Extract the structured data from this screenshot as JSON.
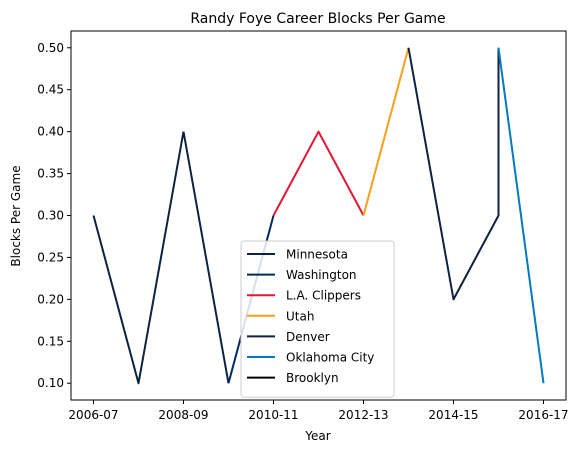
{
  "chart_data": {
    "type": "line",
    "title": "Randy Foye Career Blocks Per Game",
    "xlabel": "Year",
    "ylabel": "Blocks Per Game",
    "x_tick_labels": [
      "2006-07",
      "2008-09",
      "2010-11",
      "2012-13",
      "2014-15",
      "2016-17"
    ],
    "x": [
      "2006-07",
      "2007-08",
      "2008-09",
      "2009-10",
      "2010-11",
      "2011-12",
      "2012-13",
      "2013-14",
      "2014-15",
      "2015-16",
      "2016-17"
    ],
    "ylim": [
      0.08,
      0.52
    ],
    "y_ticks": [
      0.1,
      0.15,
      0.2,
      0.25,
      0.3,
      0.35,
      0.4,
      0.45,
      0.5
    ],
    "grid": false,
    "legend_position": "lower center",
    "series": [
      {
        "name": "Minnesota",
        "color": "#0C2340",
        "points": [
          [
            "2006-07",
            0.3
          ],
          [
            "2007-08",
            0.1
          ],
          [
            "2008-09",
            0.4
          ]
        ]
      },
      {
        "name": "Washington",
        "color": "#002B5C",
        "points": [
          [
            "2009-10",
            0.1
          ],
          [
            "2010-11",
            0.3
          ]
        ]
      },
      {
        "name": "L.A. Clippers",
        "color": "#E31837",
        "points": [
          [
            "2010-11",
            0.3
          ],
          [
            "2011-12",
            0.4
          ],
          [
            "2012-13",
            0.3
          ]
        ]
      },
      {
        "name": "Utah",
        "color": "#F9A01B",
        "points": [
          [
            "2012-13",
            0.3
          ],
          [
            "2013-14",
            0.5
          ]
        ]
      },
      {
        "name": "Denver",
        "color": "#0E2240",
        "points": [
          [
            "2013-14",
            0.5
          ],
          [
            "2014-15",
            0.2
          ],
          [
            "2015-16",
            0.3
          ],
          [
            "2015-16",
            0.5
          ]
        ]
      },
      {
        "name": "Oklahoma City",
        "color": "#007AC1",
        "points": [
          [
            "2015-16",
            0.5
          ],
          [
            "2016-17",
            0.1
          ]
        ]
      },
      {
        "name": "Brooklyn",
        "color": "#000000",
        "points": []
      }
    ],
    "connectors": [
      {
        "color": "#0C2340",
        "points": [
          [
            "2008-09",
            0.4
          ],
          [
            "2009-10",
            0.1
          ]
        ]
      }
    ]
  }
}
